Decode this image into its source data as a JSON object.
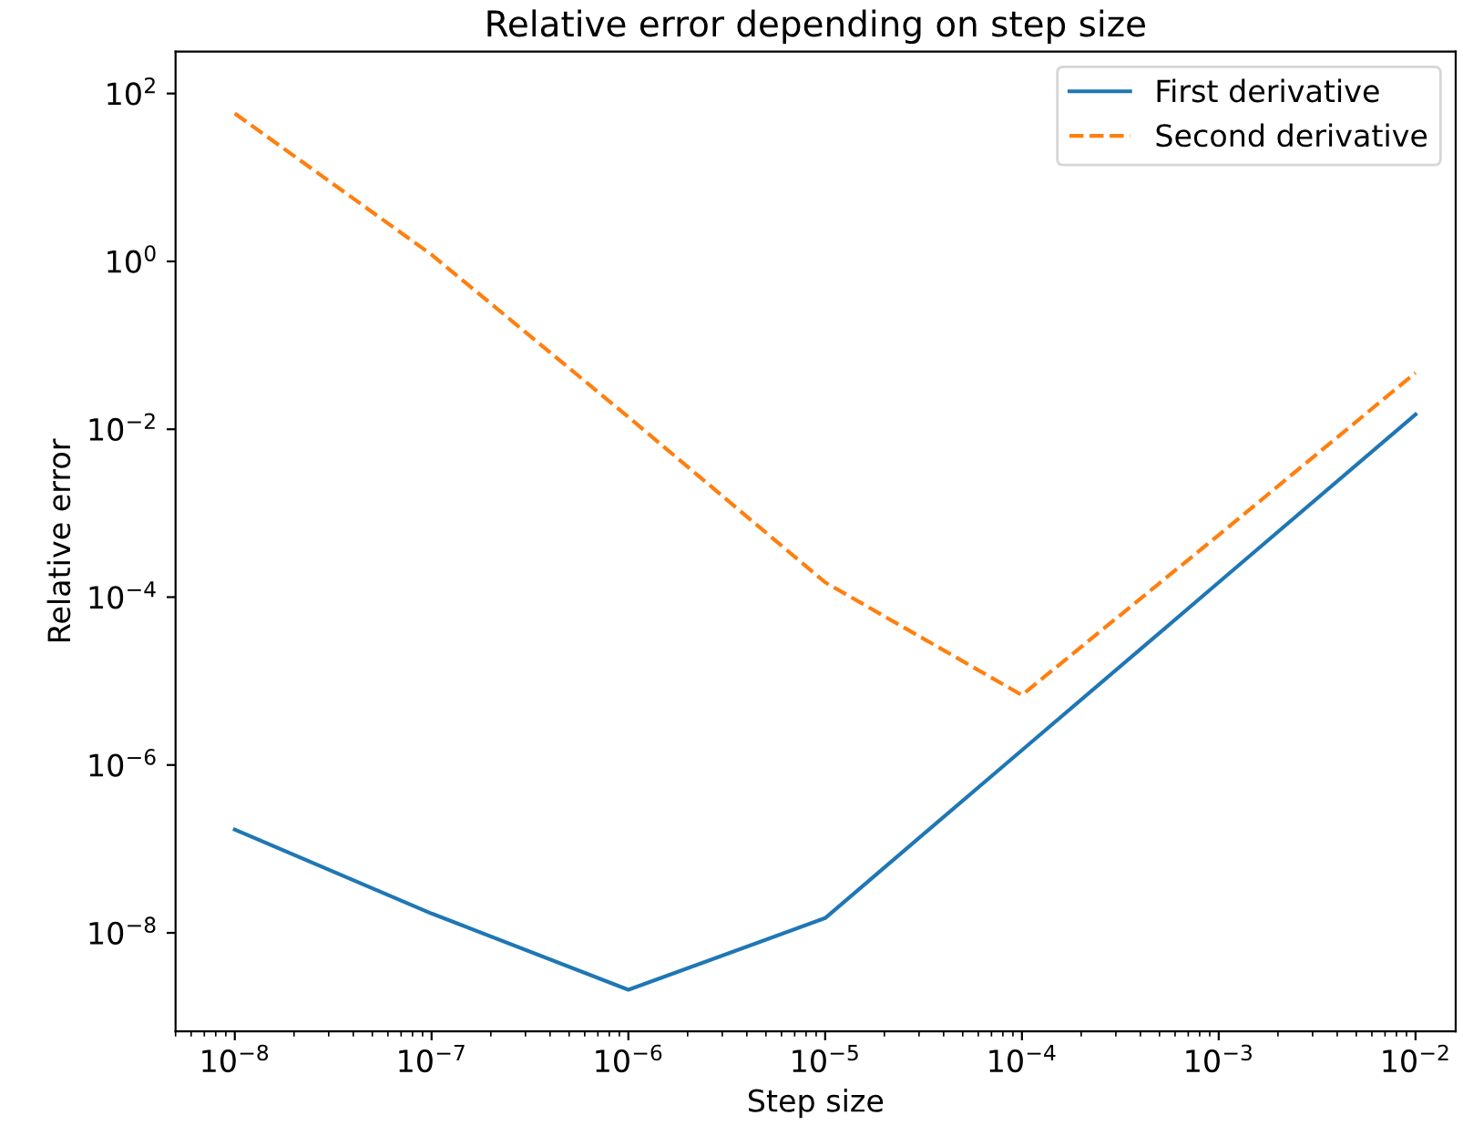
{
  "chart_data": {
    "type": "line",
    "title": "Relative error depending on step size",
    "xlabel": "Step size",
    "ylabel": "Relative error",
    "log": "xy",
    "grid": false,
    "legend": "top right",
    "x": [
      1e-08,
      1e-07,
      1e-06,
      1e-05,
      0.0001,
      0.001,
      0.01
    ],
    "series": [
      {
        "name": "First derivative",
        "color": "#1f77b4",
        "line_style": "solid",
        "values": [
          1.7e-07,
          1.7e-08,
          2.1e-09,
          1.5e-08,
          1.5e-06,
          0.00015,
          0.015
        ]
      },
      {
        "name": "Second derivative",
        "color": "#ff7f0e",
        "line_style": "dashed",
        "values": [
          58,
          1.2,
          0.014,
          0.00015,
          6.8e-06,
          0.00055,
          0.047
        ]
      }
    ],
    "xlim": [
      5e-09,
      0.016
    ],
    "ylim": [
      6.7e-10,
      316
    ],
    "xticks": [
      {
        "value": 1e-08,
        "label": "10$^{−8}$"
      },
      {
        "value": 1e-07,
        "label": "10$^{−7}$"
      },
      {
        "value": 1e-06,
        "label": "10$^{−6}$"
      },
      {
        "value": 1e-05,
        "label": "10$^{−5}$"
      },
      {
        "value": 0.0001,
        "label": "10$^{−4}$"
      },
      {
        "value": 0.001,
        "label": "10$^{−3}$"
      },
      {
        "value": 0.01,
        "label": "10$^{−2}$"
      }
    ],
    "yticks": [
      {
        "value": 1e-08,
        "label": "10$^{−8}$"
      },
      {
        "value": 1e-06,
        "label": "10$^{−6}$"
      },
      {
        "value": 0.0001,
        "label": "10$^{−4}$"
      },
      {
        "value": 0.01,
        "label": "10$^{−2}$"
      },
      {
        "value": 1,
        "label": "10$^{0}$"
      },
      {
        "value": 100,
        "label": "10$^{2}$"
      }
    ]
  }
}
